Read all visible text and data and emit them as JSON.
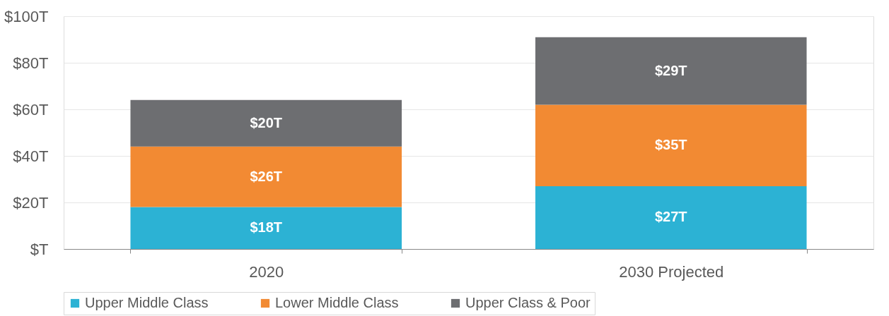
{
  "chart_data": {
    "type": "bar",
    "stacked": true,
    "categories": [
      "2020",
      "2030 Projected"
    ],
    "series": [
      {
        "name": "Upper Middle Class",
        "color": "#2cb2d4",
        "values": [
          18,
          27
        ],
        "value_labels": [
          "$18T",
          "$27T"
        ]
      },
      {
        "name": "Lower Middle Class",
        "color": "#f28a33",
        "values": [
          26,
          35
        ],
        "value_labels": [
          "$26T",
          "$35T"
        ]
      },
      {
        "name": "Upper Class & Poor",
        "color": "#6d6e71",
        "values": [
          20,
          29
        ],
        "value_labels": [
          "$20T",
          "$29T"
        ]
      }
    ],
    "ylim": [
      0,
      100
    ],
    "yticks": [
      {
        "value": 0,
        "label": "$T"
      },
      {
        "value": 20,
        "label": "$20T"
      },
      {
        "value": 40,
        "label": "$40T"
      },
      {
        "value": 60,
        "label": "$60T"
      },
      {
        "value": 80,
        "label": "$80T"
      },
      {
        "value": 100,
        "label": "$100T"
      }
    ],
    "grid": "y",
    "legend": "bottom"
  }
}
